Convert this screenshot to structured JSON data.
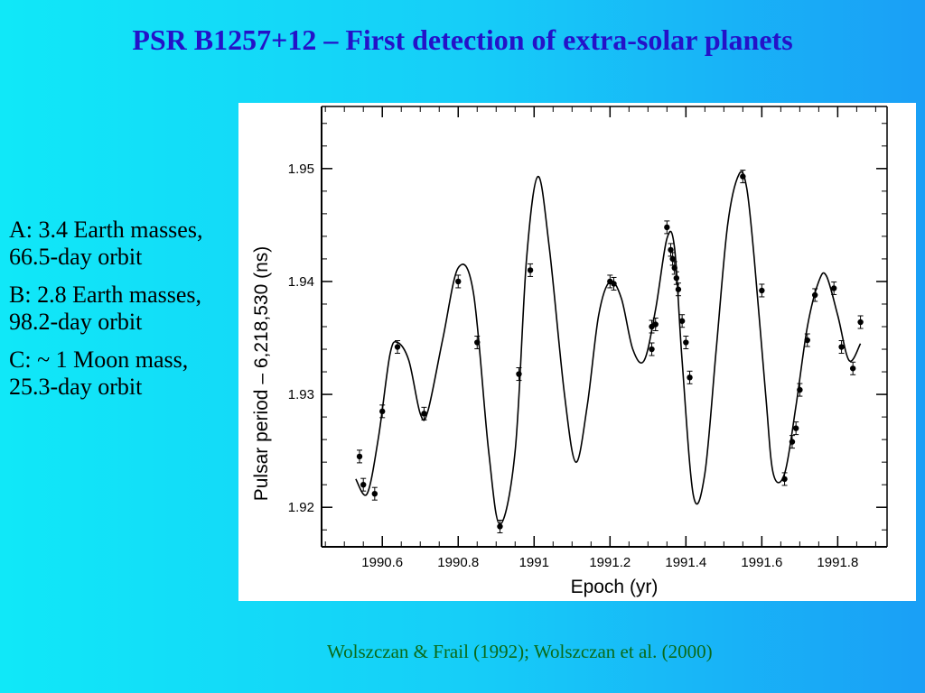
{
  "slide": {
    "title": "PSR B1257+12 – First detection of extra-solar planets",
    "bullets": [
      "A: 3.4 Earth masses, 66.5-day orbit",
      "B: 2.8 Earth masses, 98.2-day orbit",
      "C: ~ 1 Moon mass, 25.3-day orbit"
    ],
    "citation": "Wolszczan & Frail (1992); Wolszczan et al. (2000)"
  },
  "chart_data": {
    "type": "line",
    "title": "",
    "xlabel": "Epoch (yr)",
    "ylabel": "Pulsar period – 6,218,530 (ns)",
    "xlim": [
      1990.44,
      1991.93
    ],
    "ylim": [
      1.9165,
      1.9555
    ],
    "x_ticks": [
      1990.6,
      1990.8,
      1991,
      1991.2,
      1991.4,
      1991.6,
      1991.8
    ],
    "x_tick_labels": [
      "1990.6",
      "1990.8",
      "1991",
      "1991.2",
      "1991.4",
      "1991.6",
      "1991.8"
    ],
    "y_ticks": [
      1.92,
      1.93,
      1.94,
      1.95
    ],
    "y_tick_labels": [
      "1.92",
      "1.93",
      "1.94",
      "1.95"
    ],
    "grid": false,
    "series": [
      {
        "kind": "model-curve",
        "x": [
          1990.53,
          1990.56,
          1990.59,
          1990.62,
          1990.64,
          1990.67,
          1990.7,
          1990.72,
          1990.76,
          1990.8,
          1990.84,
          1990.88,
          1990.91,
          1990.95,
          1990.98,
          1991.01,
          1991.04,
          1991.08,
          1991.11,
          1991.14,
          1991.17,
          1991.2,
          1991.23,
          1991.26,
          1991.29,
          1991.32,
          1991.35,
          1991.37,
          1991.39,
          1991.42,
          1991.45,
          1991.48,
          1991.51,
          1991.54,
          1991.56,
          1991.58,
          1991.61,
          1991.63,
          1991.66,
          1991.69,
          1991.72,
          1991.75,
          1991.77,
          1991.8,
          1991.83,
          1991.86
        ],
        "y": [
          1.9225,
          1.9212,
          1.9262,
          1.9335,
          1.9346,
          1.933,
          1.9283,
          1.9285,
          1.935,
          1.9412,
          1.939,
          1.925,
          1.9185,
          1.925,
          1.942,
          1.9493,
          1.943,
          1.93,
          1.924,
          1.929,
          1.937,
          1.94,
          1.9385,
          1.934,
          1.933,
          1.9375,
          1.9438,
          1.943,
          1.933,
          1.921,
          1.923,
          1.934,
          1.945,
          1.9495,
          1.9483,
          1.942,
          1.93,
          1.923,
          1.923,
          1.929,
          1.936,
          1.94,
          1.9405,
          1.937,
          1.933,
          1.9345
        ]
      },
      {
        "kind": "observations",
        "x": [
          1990.54,
          1990.55,
          1990.58,
          1990.6,
          1990.64,
          1990.71,
          1990.8,
          1990.85,
          1990.91,
          1990.96,
          1990.99,
          1991.2,
          1991.21,
          1991.31,
          1991.31,
          1991.32,
          1991.35,
          1991.36,
          1991.365,
          1991.37,
          1991.375,
          1991.38,
          1991.39,
          1991.4,
          1991.41,
          1991.55,
          1991.6,
          1991.66,
          1991.68,
          1991.69,
          1991.7,
          1991.72,
          1991.74,
          1991.79,
          1991.81,
          1991.84,
          1991.86
        ],
        "y": [
          1.9245,
          1.922,
          1.9212,
          1.9285,
          1.9342,
          1.9283,
          1.94,
          1.9346,
          1.9183,
          1.9318,
          1.941,
          1.94,
          1.9398,
          1.934,
          1.936,
          1.9362,
          1.9448,
          1.9428,
          1.942,
          1.9412,
          1.9403,
          1.9393,
          1.9365,
          1.9346,
          1.9315,
          1.9493,
          1.9392,
          1.9225,
          1.9258,
          1.927,
          1.9304,
          1.9348,
          1.9388,
          1.9394,
          1.9342,
          1.9323,
          1.9364
        ]
      }
    ]
  }
}
